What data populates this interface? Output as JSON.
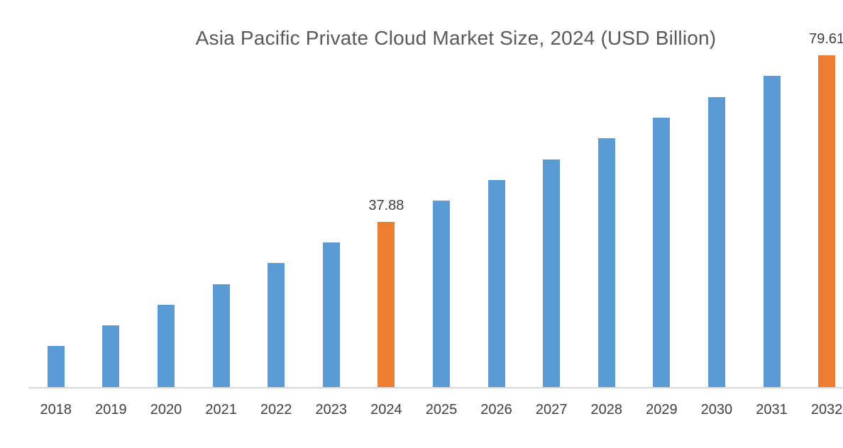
{
  "chart_data": {
    "type": "bar",
    "title": "Asia Pacific Private Cloud Market Size, 2024 (USD Billion)",
    "categories": [
      "2018",
      "2019",
      "2020",
      "2021",
      "2022",
      "2023",
      "2024",
      "2025",
      "2026",
      "2027",
      "2028",
      "2029",
      "2030",
      "2031",
      "2032"
    ],
    "values": [
      6.58,
      11.8,
      17.01,
      22.23,
      27.45,
      32.66,
      37.88,
      43.1,
      48.31,
      53.53,
      58.75,
      63.96,
      69.18,
      74.39,
      79.61
    ],
    "labeled_points": [
      {
        "category": "2024",
        "label": "37.88"
      },
      {
        "category": "2032",
        "label": "79.61"
      }
    ],
    "highlighted_categories": [
      "2024",
      "2032"
    ],
    "xlabel": "",
    "ylabel": "",
    "ylim": [
      0,
      85
    ],
    "grid": false,
    "legend": "none",
    "colors": {
      "bar": "#5B9BD5",
      "highlight": "#ED7D31",
      "title_text": "#595959",
      "axis_text": "#404040",
      "data_label_text": "#404040",
      "axis_line": "#D9D9D9",
      "background": "#FFFFFF"
    }
  }
}
